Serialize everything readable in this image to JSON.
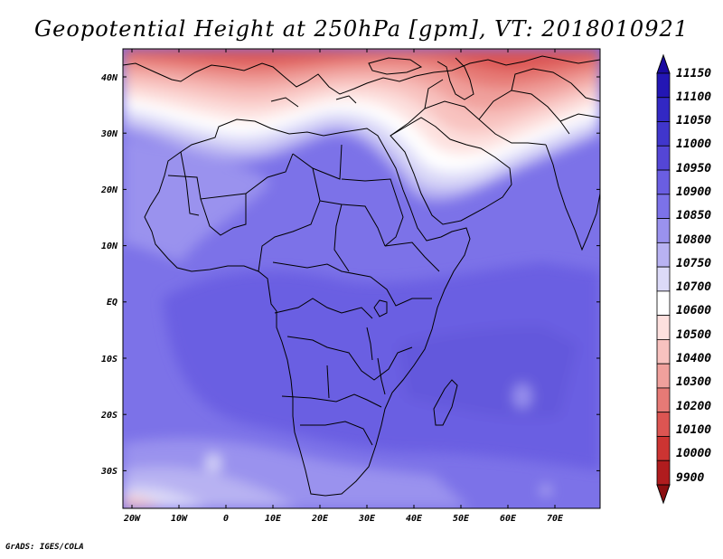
{
  "title": "Geopotential Height at 250hPa [gpm], VT: 2018010921",
  "credit": "GrADS: IGES/COLA",
  "map": {
    "lon_labels": [
      "20W",
      "10W",
      "0",
      "10E",
      "20E",
      "30E",
      "40E",
      "50E",
      "60E",
      "70E"
    ],
    "lat_labels": [
      "40N",
      "30N",
      "20N",
      "10N",
      "EQ",
      "10S",
      "20S",
      "30S"
    ]
  },
  "colorbar": {
    "levels": [
      "11150",
      "11100",
      "11050",
      "11000",
      "10950",
      "10900",
      "10850",
      "10800",
      "10750",
      "10700",
      "10600",
      "10500",
      "10400",
      "10300",
      "10200",
      "10100",
      "10000",
      "9900"
    ],
    "colors": [
      "#1a0aa0",
      "#2316b4",
      "#3228c4",
      "#4036cc",
      "#5446d6",
      "#6a5ee2",
      "#7c72e8",
      "#9a92ee",
      "#b8b2f2",
      "#dcdaf8",
      "#ffffff",
      "#fde0de",
      "#f8c2bf",
      "#f0a09c",
      "#e67a76",
      "#dc5552",
      "#cc3432",
      "#b01c1e",
      "#8c0e10"
    ]
  }
}
